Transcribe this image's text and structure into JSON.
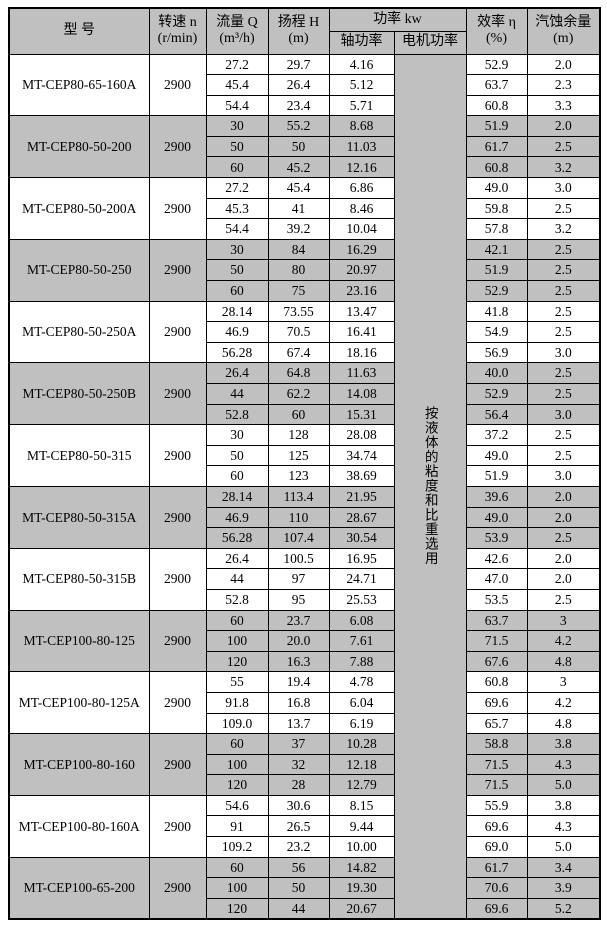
{
  "table": {
    "colors": {
      "shaded_row": "#c0c0c0",
      "header_bg": "#c0c0c0",
      "border": "#000000"
    },
    "header": {
      "model": "型  号",
      "speed_l1": "转速 n",
      "speed_l2": "(r/min)",
      "flow_l1": "流量 Q",
      "flow_l2": "(m³/h)",
      "head_l1": "扬程 H",
      "head_l2": "(m)",
      "power": "功率 kw",
      "shaft_power": "轴功率",
      "motor_power": "电机功率",
      "efficiency_l1": "效率 η",
      "efficiency_l2": "(%)",
      "npsh_l1": "汽蚀余量",
      "npsh_l2": "(m)"
    },
    "motor_power_note": "按液体的粘度和比重选用",
    "groups": [
      {
        "model": "MT-CEP80-65-160A",
        "speed": "2900",
        "shaded": false,
        "rows": [
          {
            "q": "27.2",
            "h": "29.7",
            "p": "4.16",
            "eff": "52.9",
            "npsh": "2.0"
          },
          {
            "q": "45.4",
            "h": "26.4",
            "p": "5.12",
            "eff": "63.7",
            "npsh": "2.3"
          },
          {
            "q": "54.4",
            "h": "23.4",
            "p": "5.71",
            "eff": "60.8",
            "npsh": "3.3"
          }
        ]
      },
      {
        "model": "MT-CEP80-50-200",
        "speed": "2900",
        "shaded": true,
        "rows": [
          {
            "q": "30",
            "h": "55.2",
            "p": "8.68",
            "eff": "51.9",
            "npsh": "2.0"
          },
          {
            "q": "50",
            "h": "50",
            "p": "11.03",
            "eff": "61.7",
            "npsh": "2.5"
          },
          {
            "q": "60",
            "h": "45.2",
            "p": "12.16",
            "eff": "60.8",
            "npsh": "3.2"
          }
        ]
      },
      {
        "model": "MT-CEP80-50-200A",
        "speed": "2900",
        "shaded": false,
        "rows": [
          {
            "q": "27.2",
            "h": "45.4",
            "p": "6.86",
            "eff": "49.0",
            "npsh": "3.0"
          },
          {
            "q": "45.3",
            "h": "41",
            "p": "8.46",
            "eff": "59.8",
            "npsh": "2.5"
          },
          {
            "q": "54.4",
            "h": "39.2",
            "p": "10.04",
            "eff": "57.8",
            "npsh": "3.2"
          }
        ]
      },
      {
        "model": "MT-CEP80-50-250",
        "speed": "2900",
        "shaded": true,
        "rows": [
          {
            "q": "30",
            "h": "84",
            "p": "16.29",
            "eff": "42.1",
            "npsh": "2.5"
          },
          {
            "q": "50",
            "h": "80",
            "p": "20.97",
            "eff": "51.9",
            "npsh": "2.5"
          },
          {
            "q": "60",
            "h": "75",
            "p": "23.16",
            "eff": "52.9",
            "npsh": "2.5"
          }
        ]
      },
      {
        "model": "MT-CEP80-50-250A",
        "speed": "2900",
        "shaded": false,
        "rows": [
          {
            "q": "28.14",
            "h": "73.55",
            "p": "13.47",
            "eff": "41.8",
            "npsh": "2.5"
          },
          {
            "q": "46.9",
            "h": "70.5",
            "p": "16.41",
            "eff": "54.9",
            "npsh": "2.5"
          },
          {
            "q": "56.28",
            "h": "67.4",
            "p": "18.16",
            "eff": "56.9",
            "npsh": "3.0"
          }
        ]
      },
      {
        "model": "MT-CEP80-50-250B",
        "speed": "2900",
        "shaded": true,
        "rows": [
          {
            "q": "26.4",
            "h": "64.8",
            "p": "11.63",
            "eff": "40.0",
            "npsh": "2.5"
          },
          {
            "q": "44",
            "h": "62.2",
            "p": "14.08",
            "eff": "52.9",
            "npsh": "2.5"
          },
          {
            "q": "52.8",
            "h": "60",
            "p": "15.31",
            "eff": "56.4",
            "npsh": "3.0"
          }
        ]
      },
      {
        "model": "MT-CEP80-50-315",
        "speed": "2900",
        "shaded": false,
        "rows": [
          {
            "q": "30",
            "h": "128",
            "p": "28.08",
            "eff": "37.2",
            "npsh": "2.5"
          },
          {
            "q": "50",
            "h": "125",
            "p": "34.74",
            "eff": "49.0",
            "npsh": "2.5"
          },
          {
            "q": "60",
            "h": "123",
            "p": "38.69",
            "eff": "51.9",
            "npsh": "3.0"
          }
        ]
      },
      {
        "model": "MT-CEP80-50-315A",
        "speed": "2900",
        "shaded": true,
        "rows": [
          {
            "q": "28.14",
            "h": "113.4",
            "p": "21.95",
            "eff": "39.6",
            "npsh": "2.0"
          },
          {
            "q": "46.9",
            "h": "110",
            "p": "28.67",
            "eff": "49.0",
            "npsh": "2.0"
          },
          {
            "q": "56.28",
            "h": "107.4",
            "p": "30.54",
            "eff": "53.9",
            "npsh": "2.5"
          }
        ]
      },
      {
        "model": "MT-CEP80-50-315B",
        "speed": "2900",
        "shaded": false,
        "rows": [
          {
            "q": "26.4",
            "h": "100.5",
            "p": "16.95",
            "eff": "42.6",
            "npsh": "2.0"
          },
          {
            "q": "44",
            "h": "97",
            "p": "24.71",
            "eff": "47.0",
            "npsh": "2.0"
          },
          {
            "q": "52.8",
            "h": "95",
            "p": "25.53",
            "eff": "53.5",
            "npsh": "2.5"
          }
        ]
      },
      {
        "model": "MT-CEP100-80-125",
        "speed": "2900",
        "shaded": true,
        "rows": [
          {
            "q": "60",
            "h": "23.7",
            "p": "6.08",
            "eff": "63.7",
            "npsh": "3"
          },
          {
            "q": "100",
            "h": "20.0",
            "p": "7.61",
            "eff": "71.5",
            "npsh": "4.2"
          },
          {
            "q": "120",
            "h": "16.3",
            "p": "7.88",
            "eff": "67.6",
            "npsh": "4.8"
          }
        ]
      },
      {
        "model": "MT-CEP100-80-125A",
        "speed": "2900",
        "shaded": false,
        "rows": [
          {
            "q": "55",
            "h": "19.4",
            "p": "4.78",
            "eff": "60.8",
            "npsh": "3"
          },
          {
            "q": "91.8",
            "h": "16.8",
            "p": "6.04",
            "eff": "69.6",
            "npsh": "4.2"
          },
          {
            "q": "109.0",
            "h": "13.7",
            "p": "6.19",
            "eff": "65.7",
            "npsh": "4.8"
          }
        ]
      },
      {
        "model": "MT-CEP100-80-160",
        "speed": "2900",
        "shaded": true,
        "rows": [
          {
            "q": "60",
            "h": "37",
            "p": "10.28",
            "eff": "58.8",
            "npsh": "3.8"
          },
          {
            "q": "100",
            "h": "32",
            "p": "12.18",
            "eff": "71.5",
            "npsh": "4.3"
          },
          {
            "q": "120",
            "h": "28",
            "p": "12.79",
            "eff": "71.5",
            "npsh": "5.0"
          }
        ]
      },
      {
        "model": "MT-CEP100-80-160A",
        "speed": "2900",
        "shaded": false,
        "rows": [
          {
            "q": "54.6",
            "h": "30.6",
            "p": "8.15",
            "eff": "55.9",
            "npsh": "3.8"
          },
          {
            "q": "91",
            "h": "26.5",
            "p": "9.44",
            "eff": "69.6",
            "npsh": "4.3"
          },
          {
            "q": "109.2",
            "h": "23.2",
            "p": "10.00",
            "eff": "69.0",
            "npsh": "5.0"
          }
        ]
      },
      {
        "model": "MT-CEP100-65-200",
        "speed": "2900",
        "shaded": true,
        "rows": [
          {
            "q": "60",
            "h": "56",
            "p": "14.82",
            "eff": "61.7",
            "npsh": "3.4"
          },
          {
            "q": "100",
            "h": "50",
            "p": "19.30",
            "eff": "70.6",
            "npsh": "3.9"
          },
          {
            "q": "120",
            "h": "44",
            "p": "20.67",
            "eff": "69.6",
            "npsh": "5.2"
          }
        ]
      }
    ]
  }
}
